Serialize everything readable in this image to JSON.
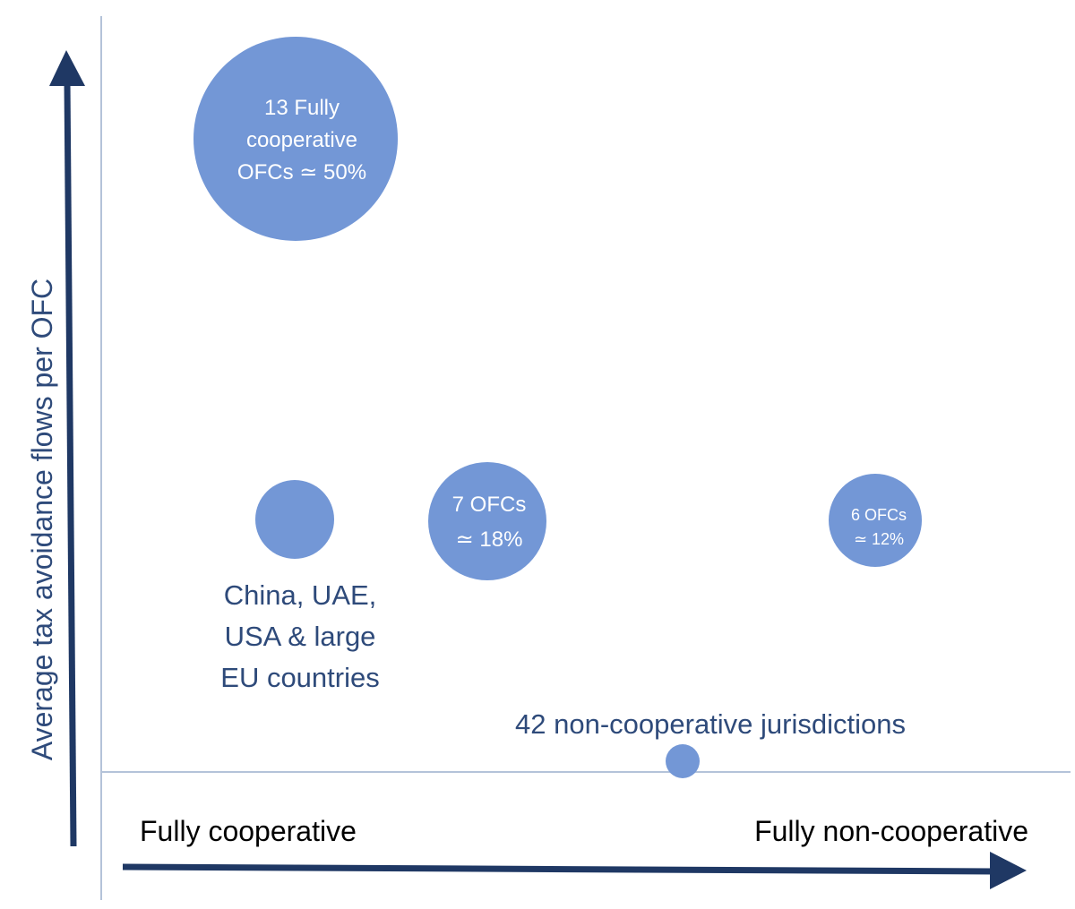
{
  "axes": {
    "y_label": "Average tax avoidance flows per OFC",
    "x_left_label": "Fully cooperative",
    "x_right_label": "Fully non-cooperative"
  },
  "bubbles": {
    "fully_cooperative": {
      "lines": [
        "13 Fully",
        "cooperative",
        "OFCs ≃ 50%"
      ]
    },
    "large_countries": {
      "caption_lines": [
        "China, UAE,",
        "USA & large",
        "EU countries"
      ]
    },
    "seven_ofcs": {
      "lines": [
        "7 OFCs",
        "≃ 18%"
      ]
    },
    "six_ofcs": {
      "lines": [
        "6 OFCs",
        "≃ 12%"
      ]
    },
    "non_cooperative": {
      "caption": "42 non-cooperative jurisdictions"
    }
  },
  "colors": {
    "bubble": "#7397d6",
    "text_dark": "#2e4a7a",
    "arrow": "#1f3864",
    "grid_line": "#b4c3d9",
    "bubble_text": "#ffffff"
  }
}
